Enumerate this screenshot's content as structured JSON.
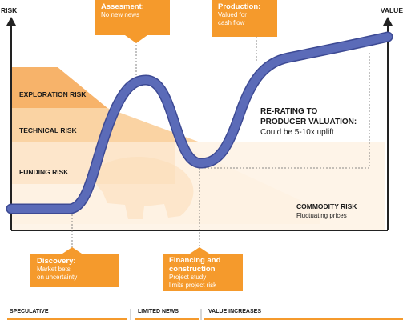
{
  "axes": {
    "y_label": "RISK",
    "x_label": "VALUE"
  },
  "risk_bands": [
    {
      "label": "EXPLORATION RISK"
    },
    {
      "label": "TECHNICAL RISK"
    },
    {
      "label": "FUNDING RISK"
    }
  ],
  "commodity": {
    "title": "COMMODITY RISK",
    "subtitle": "Fluctuating prices"
  },
  "rerating": {
    "line1": "RE-RATING TO",
    "line2": "PRODUCER VALUATION:",
    "line3": "Could be 5-10x uplift"
  },
  "callouts": {
    "assessment": {
      "title": "Assesment:",
      "body": [
        "No new news"
      ]
    },
    "production": {
      "title": "Production:",
      "body": [
        "Valued for",
        "cash flow"
      ]
    },
    "discovery": {
      "title": "Discovery:",
      "body": [
        "Market bets",
        "on uncertainty"
      ]
    },
    "financing": {
      "title": "Financing and construction",
      "body": [
        "Project study",
        "limits project risk"
      ]
    }
  },
  "phases": [
    "SPECULATIVE",
    "LIMITED NEWS",
    "VALUE INCREASES"
  ],
  "colors": {
    "curve": "#5b6bb8",
    "curve_edge": "#3d4a94",
    "callout": "#f59a2c",
    "band_dark": "#f7b36a",
    "band_mid": "#fad3a3",
    "band_light": "#fde6cb",
    "band_pale": "#fef3e6",
    "axis": "#222222"
  }
}
